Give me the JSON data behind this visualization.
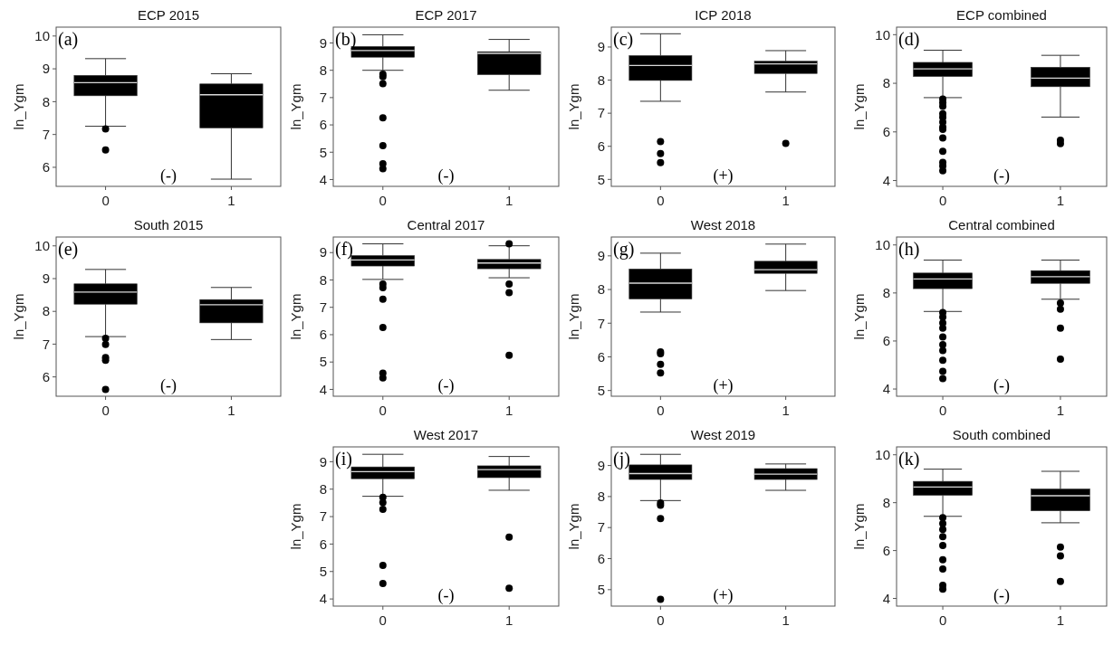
{
  "chart_data": [
    {
      "type": "box",
      "title": "ECP 2015",
      "ylabel": "ln_Ygm",
      "categories": [
        "0",
        "1"
      ],
      "ylim": [
        5.42,
        10.27
      ],
      "yticks": [
        6,
        7,
        8,
        9,
        10
      ],
      "annotations": [
        "(a)",
        "(-)"
      ],
      "boxes": [
        {
          "low": 7.25,
          "q1": 8.18,
          "median": 8.58,
          "q3": 8.8,
          "high": 9.31,
          "outliers": [
            7.17,
            6.53
          ]
        },
        {
          "low": 5.64,
          "q1": 7.2,
          "median": 8.21,
          "q3": 8.54,
          "high": 8.85
        }
      ]
    },
    {
      "type": "box",
      "title": "ECP 2017",
      "ylabel": "ln_Ygm",
      "categories": [
        "0",
        "1"
      ],
      "ylim": [
        3.75,
        9.58
      ],
      "yticks": [
        4,
        5,
        6,
        7,
        8,
        9
      ],
      "annotations": [
        "(b)",
        "(-)"
      ],
      "boxes": [
        {
          "low": 8.0,
          "q1": 8.48,
          "median": 8.72,
          "q3": 8.87,
          "high": 9.3,
          "outliers": [
            7.86,
            7.77,
            7.51,
            6.26,
            5.24,
            4.58,
            4.4
          ]
        },
        {
          "low": 7.27,
          "q1": 7.84,
          "median": 8.62,
          "q3": 8.68,
          "high": 9.13
        }
      ]
    },
    {
      "type": "box",
      "title": "ICP 2018",
      "ylabel": "ln_Ygm",
      "categories": [
        "0",
        "1"
      ],
      "ylim": [
        4.79,
        9.6
      ],
      "yticks": [
        5,
        6,
        7,
        8,
        9
      ],
      "annotations": [
        "(c)",
        "(+)"
      ],
      "boxes": [
        {
          "low": 7.36,
          "q1": 7.99,
          "median": 8.44,
          "q3": 8.74,
          "high": 9.4,
          "outliers": [
            6.14,
            5.78,
            5.51
          ]
        },
        {
          "low": 7.64,
          "q1": 8.2,
          "median": 8.49,
          "q3": 8.57,
          "high": 8.89,
          "outliers": [
            6.09
          ]
        }
      ]
    },
    {
      "type": "box",
      "title": "ECP combined",
      "ylabel": "ln_Ygm",
      "categories": [
        "0",
        "1"
      ],
      "ylim": [
        3.76,
        10.31
      ],
      "yticks": [
        4,
        6,
        8,
        10
      ],
      "annotations": [
        "(d)",
        "(-)"
      ],
      "boxes": [
        {
          "low": 7.41,
          "q1": 8.28,
          "median": 8.59,
          "q3": 8.86,
          "high": 9.36,
          "outliers": [
            7.35,
            7.2,
            7.05,
            6.75,
            6.6,
            6.4,
            6.2,
            6.1,
            5.75,
            5.2,
            4.75,
            4.6,
            4.4
          ]
        },
        {
          "low": 6.61,
          "q1": 7.86,
          "median": 8.21,
          "q3": 8.66,
          "high": 9.15,
          "outliers": [
            5.66,
            5.52
          ]
        }
      ]
    },
    {
      "type": "box",
      "title": "South 2015",
      "ylabel": "ln_Ygm",
      "categories": [
        "0",
        "1"
      ],
      "ylim": [
        5.41,
        10.27
      ],
      "yticks": [
        6,
        7,
        8,
        9,
        10
      ],
      "annotations": [
        "(e)",
        "(-)"
      ],
      "boxes": [
        {
          "low": 7.23,
          "q1": 8.22,
          "median": 8.59,
          "q3": 8.84,
          "high": 9.28,
          "outliers": [
            7.18,
            6.99,
            6.59,
            6.51,
            5.62
          ]
        },
        {
          "low": 7.14,
          "q1": 7.65,
          "median": 8.2,
          "q3": 8.36,
          "high": 8.73
        }
      ]
    },
    {
      "type": "box",
      "title": "Central 2017",
      "ylabel": "ln_Ygm",
      "categories": [
        "0",
        "1"
      ],
      "ylim": [
        3.75,
        9.57
      ],
      "yticks": [
        4,
        5,
        6,
        7,
        8,
        9
      ],
      "annotations": [
        "(f)",
        "(-)"
      ],
      "boxes": [
        {
          "low": 8.02,
          "q1": 8.51,
          "median": 8.73,
          "q3": 8.89,
          "high": 9.32,
          "outliers": [
            7.85,
            7.72,
            7.3,
            6.26,
            4.59,
            4.42
          ]
        },
        {
          "low": 8.08,
          "q1": 8.41,
          "median": 8.62,
          "q3": 8.75,
          "high": 9.25,
          "outliers": [
            9.32,
            7.85,
            7.54,
            5.25
          ]
        }
      ]
    },
    {
      "type": "box",
      "title": "West 2018",
      "ylabel": "ln_Ygm",
      "categories": [
        "0",
        "1"
      ],
      "ylim": [
        4.83,
        9.56
      ],
      "yticks": [
        5,
        6,
        7,
        8,
        9
      ],
      "annotations": [
        "(g)",
        "(+)"
      ],
      "boxes": [
        {
          "low": 7.33,
          "q1": 7.72,
          "median": 8.19,
          "q3": 8.61,
          "high": 9.08,
          "outliers": [
            6.15,
            6.09,
            5.78,
            5.52
          ]
        },
        {
          "low": 7.97,
          "q1": 8.48,
          "median": 8.59,
          "q3": 8.84,
          "high": 9.35
        }
      ]
    },
    {
      "type": "box",
      "title": "Central combined",
      "ylabel": "ln_Ygm",
      "categories": [
        "0",
        "1"
      ],
      "ylim": [
        3.7,
        10.33
      ],
      "yticks": [
        4,
        6,
        8,
        10
      ],
      "annotations": [
        "(h)",
        "(-)"
      ],
      "boxes": [
        {
          "low": 7.23,
          "q1": 8.18,
          "median": 8.58,
          "q3": 8.83,
          "high": 9.37,
          "outliers": [
            7.18,
            7.0,
            6.75,
            6.53,
            6.17,
            5.85,
            5.6,
            5.2,
            4.74,
            4.43
          ]
        },
        {
          "low": 7.74,
          "q1": 8.4,
          "median": 8.68,
          "q3": 8.93,
          "high": 9.37,
          "outliers": [
            7.58,
            7.33,
            6.53,
            5.24
          ]
        }
      ]
    },
    {
      "type": "box",
      "title": "West 2017",
      "ylabel": "ln_Ygm",
      "categories": [
        "0",
        "1"
      ],
      "ylim": [
        3.74,
        9.54
      ],
      "yticks": [
        4,
        5,
        6,
        7,
        8,
        9
      ],
      "annotations": [
        "(i)",
        "(-)"
      ],
      "boxes": [
        {
          "low": 7.74,
          "q1": 8.38,
          "median": 8.64,
          "q3": 8.81,
          "high": 9.27,
          "outliers": [
            7.7,
            7.51,
            7.27,
            5.22,
            4.56
          ]
        },
        {
          "low": 7.96,
          "q1": 8.42,
          "median": 8.71,
          "q3": 8.85,
          "high": 9.19,
          "outliers": [
            6.25,
            4.39
          ]
        }
      ]
    },
    {
      "type": "box",
      "title": "West 2019",
      "ylabel": "ln_Ygm",
      "categories": [
        "0",
        "1"
      ],
      "ylim": [
        4.47,
        9.6
      ],
      "yticks": [
        5,
        6,
        7,
        8,
        9
      ],
      "annotations": [
        "(j)",
        "(+)"
      ],
      "boxes": [
        {
          "low": 7.87,
          "q1": 8.55,
          "median": 8.74,
          "q3": 9.02,
          "high": 9.36,
          "outliers": [
            7.79,
            7.72,
            7.29,
            4.69
          ]
        },
        {
          "low": 8.2,
          "q1": 8.55,
          "median": 8.72,
          "q3": 8.9,
          "high": 9.05
        }
      ]
    },
    {
      "type": "box",
      "title": "South combined",
      "ylabel": "ln_Ygm",
      "categories": [
        "0",
        "1"
      ],
      "ylim": [
        3.68,
        10.33
      ],
      "yticks": [
        4,
        6,
        8,
        10
      ],
      "annotations": [
        "(k)",
        "(-)"
      ],
      "boxes": [
        {
          "low": 7.43,
          "q1": 8.31,
          "median": 8.65,
          "q3": 8.89,
          "high": 9.4,
          "outliers": [
            7.37,
            7.13,
            6.88,
            6.58,
            6.21,
            5.62,
            5.23,
            4.55,
            4.39
          ]
        },
        {
          "low": 7.16,
          "q1": 7.66,
          "median": 8.29,
          "q3": 8.57,
          "high": 9.31,
          "outliers": [
            6.15,
            5.78,
            4.71
          ]
        }
      ]
    }
  ]
}
